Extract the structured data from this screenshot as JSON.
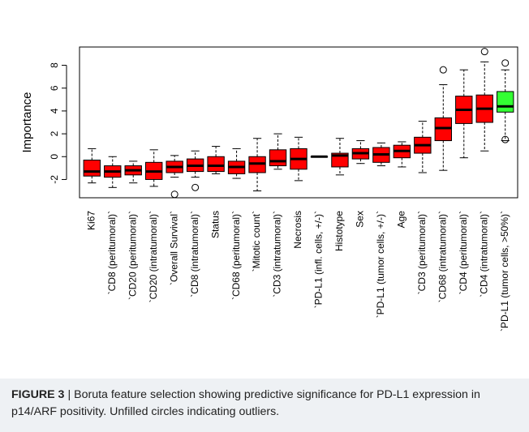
{
  "chart_data": {
    "type": "box",
    "title": "",
    "xlabel": "",
    "ylabel": "Importance",
    "ylim": [
      -3.6,
      9.6
    ],
    "yticks": [
      -2,
      0,
      2,
      4,
      6,
      8
    ],
    "grid": false,
    "categories": [
      "Ki67",
      "`CD8 (peritumoral)`",
      "`CD20 (peritumoral)`",
      "`CD20 (intratumoral)`",
      "`Overall Survival`",
      "`CD8 (intratumoral)`",
      "Status",
      "`CD68 (peritumoral)`",
      "`Mitotic count`",
      "`CD3 (intratumoral)`",
      "Necrosis",
      "`PD-L1 (infl. cells, +/-)`",
      "Histotype",
      "Sex",
      "`PD-L1 (tumor cells, +/-)`",
      "Age",
      "`CD3 (peritumoral)`",
      "`CD68 (intratumoral)`",
      "`CD4 (peritumoral)`",
      "`CD4 (intratumoral)`",
      "`PD-L1 (tumor cells, >50%)`"
    ],
    "boxes": [
      {
        "min": -2.3,
        "q1": -1.7,
        "median": -1.3,
        "q3": -0.3,
        "max": 0.7,
        "outliers": [],
        "color": "#ff0000"
      },
      {
        "min": -2.7,
        "q1": -1.8,
        "median": -1.3,
        "q3": -0.8,
        "max": 0.0,
        "outliers": [],
        "color": "#ff0000"
      },
      {
        "min": -2.3,
        "q1": -1.6,
        "median": -1.2,
        "q3": -0.8,
        "max": -0.4,
        "outliers": [],
        "color": "#ff0000"
      },
      {
        "min": -2.6,
        "q1": -2.0,
        "median": -1.3,
        "q3": -0.5,
        "max": 0.6,
        "outliers": [],
        "color": "#ff0000"
      },
      {
        "min": -1.8,
        "q1": -1.4,
        "median": -0.9,
        "q3": -0.4,
        "max": 0.1,
        "outliers": [
          -3.3
        ],
        "color": "#ff0000"
      },
      {
        "min": -1.8,
        "q1": -1.3,
        "median": -0.8,
        "q3": -0.2,
        "max": 0.5,
        "outliers": [
          -2.7
        ],
        "color": "#ff0000"
      },
      {
        "min": -1.5,
        "q1": -1.3,
        "median": -0.8,
        "q3": 0.0,
        "max": 0.9,
        "outliers": [],
        "color": "#ff0000"
      },
      {
        "min": -1.9,
        "q1": -1.5,
        "median": -0.9,
        "q3": -0.4,
        "max": 0.7,
        "outliers": [],
        "color": "#ff0000"
      },
      {
        "min": -3.0,
        "q1": -1.4,
        "median": -0.6,
        "q3": 0.0,
        "max": 1.6,
        "outliers": [],
        "color": "#ff0000"
      },
      {
        "min": -1.1,
        "q1": -0.8,
        "median": -0.4,
        "q3": 0.6,
        "max": 2.0,
        "outliers": [],
        "color": "#ff0000"
      },
      {
        "min": -2.1,
        "q1": -1.1,
        "median": -0.2,
        "q3": 0.7,
        "max": 1.7,
        "outliers": [],
        "color": "#ff0000"
      },
      {
        "min": 0.0,
        "q1": 0.0,
        "median": 0.0,
        "q3": 0.0,
        "max": 0.0,
        "outliers": [],
        "color": "#ff0000"
      },
      {
        "min": -1.6,
        "q1": -0.9,
        "median": 0.1,
        "q3": 0.3,
        "max": 1.6,
        "outliers": [],
        "color": "#ff0000"
      },
      {
        "min": -0.6,
        "q1": -0.2,
        "median": 0.3,
        "q3": 0.7,
        "max": 1.4,
        "outliers": [],
        "color": "#ff0000"
      },
      {
        "min": -0.8,
        "q1": -0.5,
        "median": 0.2,
        "q3": 0.8,
        "max": 1.2,
        "outliers": [],
        "color": "#ff0000"
      },
      {
        "min": -0.9,
        "q1": -0.1,
        "median": 0.5,
        "q3": 1.0,
        "max": 1.3,
        "outliers": [],
        "color": "#ff0000"
      },
      {
        "min": -1.4,
        "q1": 0.3,
        "median": 1.0,
        "q3": 1.7,
        "max": 3.1,
        "outliers": [],
        "color": "#ff0000"
      },
      {
        "min": -1.2,
        "q1": 1.4,
        "median": 2.5,
        "q3": 3.4,
        "max": 6.3,
        "outliers": [
          7.6
        ],
        "color": "#ff0000"
      },
      {
        "min": -0.1,
        "q1": 2.9,
        "median": 4.1,
        "q3": 5.3,
        "max": 7.6,
        "outliers": [],
        "color": "#ff0000"
      },
      {
        "min": 0.5,
        "q1": 3.0,
        "median": 4.2,
        "q3": 5.4,
        "max": 8.3,
        "outliers": [
          9.2
        ],
        "color": "#ff0000"
      },
      {
        "min": 1.4,
        "q1": 3.9,
        "median": 4.4,
        "q3": 5.7,
        "max": 7.6,
        "outliers": [
          8.2,
          1.5
        ],
        "color": "#33ff33"
      }
    ]
  },
  "caption": {
    "label": "FIGURE 3",
    "separator": "|",
    "text": "Boruta feature selection showing predictive significance for PD-L1 expression in p14/ARF positivity. Unfilled circles indicating outliers."
  }
}
